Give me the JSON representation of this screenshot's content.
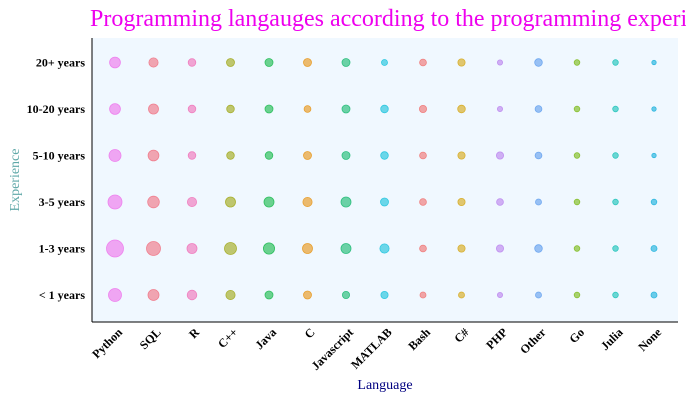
{
  "chart_data": {
    "type": "scatter",
    "title": "Programming langauges according to the programming experience",
    "xlabel": "Language",
    "ylabel": "Experience",
    "categories": [
      "Python",
      "SQL",
      "R",
      "C++",
      "Java",
      "C",
      "Javascript",
      "MATLAB",
      "Bash",
      "C#",
      "PHP",
      "Other",
      "Go",
      "Julia",
      "None"
    ],
    "experience_levels": [
      "< 1 years",
      "1-3 years",
      "3-5 years",
      "5-10 years",
      "10-20 years",
      "20+ years"
    ],
    "sizes": [
      [
        6.5,
        5.5,
        4.8,
        4.6,
        4.0,
        4.0,
        3.6,
        3.6,
        3.0,
        3.0,
        2.6,
        3.0,
        2.8,
        2.8,
        3.0
      ],
      [
        8.5,
        7.0,
        5.0,
        6.0,
        5.6,
        5.0,
        5.0,
        4.6,
        3.4,
        3.6,
        3.6,
        3.8,
        2.8,
        2.8,
        3.0
      ],
      [
        7.0,
        5.8,
        4.6,
        5.0,
        5.0,
        4.6,
        5.0,
        4.0,
        3.4,
        3.6,
        3.4,
        3.0,
        2.8,
        2.8,
        2.8
      ],
      [
        6.0,
        5.4,
        3.8,
        3.8,
        3.8,
        4.0,
        4.0,
        3.8,
        3.4,
        3.6,
        3.6,
        3.4,
        2.8,
        2.8,
        2.2
      ],
      [
        5.4,
        5.0,
        3.8,
        3.8,
        4.0,
        3.4,
        4.0,
        3.8,
        3.6,
        3.8,
        2.6,
        3.4,
        2.8,
        2.8,
        2.2
      ],
      [
        5.4,
        4.6,
        3.8,
        4.0,
        4.0,
        4.0,
        4.0,
        3.0,
        3.4,
        3.6,
        2.6,
        3.8,
        2.8,
        2.8,
        2.2
      ]
    ],
    "colors": [
      "#ee82ee",
      "#f08090",
      "#f080c0",
      "#a8b030",
      "#30c060",
      "#e8a030",
      "#30c080",
      "#30c8e0",
      "#f08080",
      "#d8b030",
      "#c090f0",
      "#70a8f0",
      "#88c030",
      "#30c8c0",
      "#30b8e0"
    ],
    "title_color": "#ee00ee",
    "ylabel_color": "#5fa8a8",
    "xlabel_color": "#000080",
    "plot_background": "#f0f8ff",
    "grid": false
  }
}
